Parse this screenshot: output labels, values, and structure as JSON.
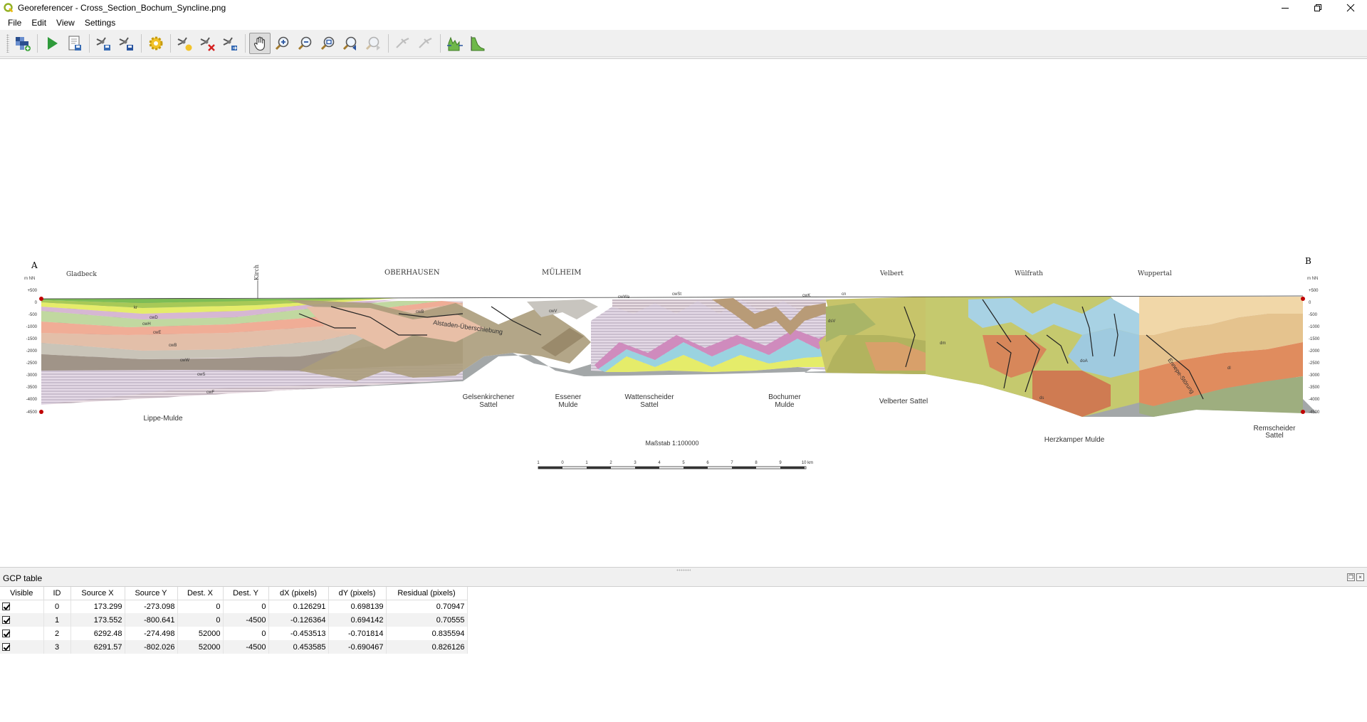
{
  "window": {
    "title": "Georeferencer - Cross_Section_Bochum_Syncline.png",
    "icon": "qgis-logo-icon",
    "controls": [
      "minimize-icon",
      "restore-icon",
      "close-icon"
    ]
  },
  "menu": {
    "items": [
      "File",
      "Edit",
      "View",
      "Settings"
    ]
  },
  "toolbar": {
    "buttons": [
      {
        "name": "open-raster-icon"
      },
      {
        "name": "start-georeferencing-icon"
      },
      {
        "name": "generate-gdal-script-icon"
      },
      {
        "name": "load-gcp-points-icon"
      },
      {
        "name": "save-gcp-points-icon"
      },
      {
        "name": "transformation-settings-icon"
      },
      {
        "name": "add-point-icon"
      },
      {
        "name": "delete-point-icon"
      },
      {
        "name": "move-gcp-point-icon"
      },
      {
        "name": "pan-icon",
        "active": true
      },
      {
        "name": "zoom-in-icon"
      },
      {
        "name": "zoom-out-icon"
      },
      {
        "name": "zoom-to-layer-icon"
      },
      {
        "name": "zoom-last-icon"
      },
      {
        "name": "zoom-next-icon"
      },
      {
        "name": "link-georeferencer-to-qgis-icon"
      },
      {
        "name": "link-qgis-to-georeferencer-icon"
      },
      {
        "name": "full-histogram-stretch-icon"
      },
      {
        "name": "local-histogram-stretch-icon"
      }
    ]
  },
  "section": {
    "left_letter": "A",
    "right_letter": "B",
    "top_labels": {
      "gladbeck": "Gladbeck",
      "kirch": "Kirch",
      "oberhausen": "OBERHAUSEN",
      "muelheim": "MÜLHEIM",
      "velbert": "Velbert",
      "wuelfrath": "Wülfrath",
      "wuppertal": "Wuppertal"
    },
    "left_axis": [
      "+500",
      "0",
      "-500",
      "-1000",
      "-1500",
      "-2000",
      "-2500",
      "-3000",
      "-3500",
      "-4000",
      "-4500"
    ],
    "right_axis": [
      "+500",
      "0",
      "-500",
      "-1000",
      "-1500",
      "-2000",
      "-2500",
      "-3000",
      "-3500",
      "-4000",
      "-4500"
    ],
    "left_unit": "m NN",
    "right_unit": "m NN",
    "structures": {
      "lippe": "Lippe-Mulde",
      "gelsen_1": "Gelsenkirchener",
      "gelsen_2": "Sattel",
      "essener_1": "Essener",
      "essener_2": "Mulde",
      "watt_1": "Wattenscheider",
      "watt_2": "Sattel",
      "bochumer_1": "Bochumer",
      "bochumer_2": "Mulde",
      "velberter": "Velberter Sattel",
      "herzkamper": "Herzkamper Mulde",
      "remscheider_1": "Remscheider",
      "remscheider_2": "Sattel",
      "alstaden": "Alstaden-Überschiebung",
      "ennepe": "Ennepe-Störung"
    },
    "unit_labels": {
      "kr": "kr",
      "cwD": "cwD",
      "cwH": "cwH",
      "cwE": "cwE",
      "cwB": "cwB",
      "cwW": "cwW",
      "cwS": "cwS",
      "cwF": "cwF",
      "cwV": "cwV",
      "cwWa": "cwWa",
      "cwSt": "cwSt",
      "cwK": "cwK",
      "cn": "cn",
      "dsv": "dsV",
      "dm": "dm",
      "dl": "dl",
      "doa": "doA",
      "ds": "ds"
    },
    "scale_title": "Maßstab 1:100000",
    "scale_ticks": [
      "1",
      "0",
      "1",
      "2",
      "3",
      "4",
      "5",
      "6",
      "7",
      "8",
      "9",
      "10 km"
    ]
  },
  "gcp_panel": {
    "title": "GCP table",
    "dock_buttons": [
      "float-icon",
      "close-icon"
    ],
    "columns": [
      "Visible",
      "ID",
      "Source X",
      "Source Y",
      "Dest. X",
      "Dest. Y",
      "dX (pixels)",
      "dY (pixels)",
      "Residual (pixels)"
    ],
    "rows": [
      {
        "visible": true,
        "id": "0",
        "src_x": "173.299",
        "src_y": "-273.098",
        "dst_x": "0",
        "dst_y": "0",
        "dx": "0.126291",
        "dy": "0.698139",
        "residual": "0.70947"
      },
      {
        "visible": true,
        "id": "1",
        "src_x": "173.552",
        "src_y": "-800.641",
        "dst_x": "0",
        "dst_y": "-4500",
        "dx": "-0.126364",
        "dy": "0.694142",
        "residual": "0.70555"
      },
      {
        "visible": true,
        "id": "2",
        "src_x": "6292.48",
        "src_y": "-274.498",
        "dst_x": "52000",
        "dst_y": "0",
        "dx": "-0.453513",
        "dy": "-0.701814",
        "residual": "0.835594"
      },
      {
        "visible": true,
        "id": "3",
        "src_x": "6291.57",
        "src_y": "-802.026",
        "dst_x": "52000",
        "dst_y": "-4500",
        "dx": "0.453585",
        "dy": "-0.690467",
        "residual": "0.826126"
      }
    ]
  },
  "colors": {
    "accent_selected": "#dcdcdc",
    "gcp_marker": "#c00000"
  }
}
